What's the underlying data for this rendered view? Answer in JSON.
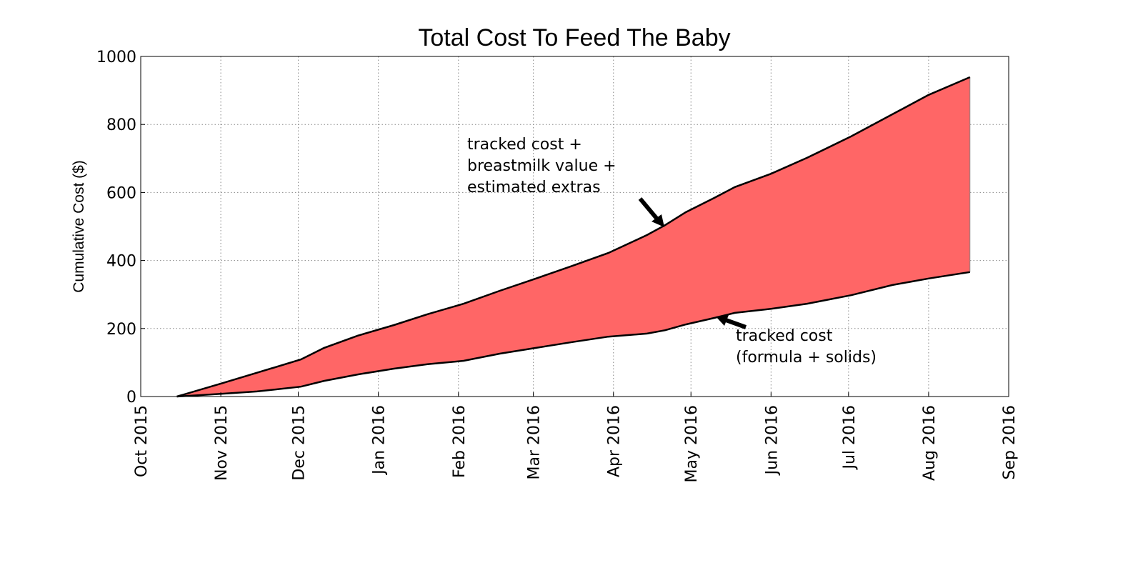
{
  "chart_data": {
    "type": "area",
    "title": "Total Cost To Feed The Baby",
    "xlabel": "",
    "ylabel": "Cumulative Cost ($)",
    "xlim": [
      "2015-10-01",
      "2016-09-01"
    ],
    "ylim": [
      0,
      1000
    ],
    "grid": true,
    "fill_color": "#ff6666",
    "line_color": "#000000",
    "x_ticks": [
      "Oct 2015",
      "Nov 2015",
      "Dec 2015",
      "Jan 2016",
      "Feb 2016",
      "Mar 2016",
      "Apr 2016",
      "May 2016",
      "Jun 2016",
      "Jul 2016",
      "Aug 2016",
      "Sep 2016"
    ],
    "x_tick_dates": [
      "2015-10-01",
      "2015-11-01",
      "2015-12-01",
      "2016-01-01",
      "2016-02-01",
      "2016-03-01",
      "2016-04-01",
      "2016-05-01",
      "2016-06-01",
      "2016-07-01",
      "2016-08-01",
      "2016-09-01"
    ],
    "y_ticks": [
      0,
      200,
      400,
      600,
      800,
      1000
    ],
    "x": [
      "2015-10-15",
      "2015-11-01",
      "2015-11-15",
      "2015-12-02",
      "2015-12-11",
      "2015-12-24",
      "2016-01-07",
      "2016-01-20",
      "2016-02-03",
      "2016-02-17",
      "2016-03-02",
      "2016-03-16",
      "2016-03-30",
      "2016-04-14",
      "2016-04-21",
      "2016-04-29",
      "2016-05-10",
      "2016-05-18",
      "2016-06-01",
      "2016-06-15",
      "2016-07-02",
      "2016-07-18",
      "2016-08-01",
      "2016-08-17"
    ],
    "series": [
      {
        "values": [
          0,
          38,
          70,
          109,
          143,
          179,
          210,
          242,
          273,
          311,
          347,
          384,
          422,
          475,
          504,
          542,
          584,
          616,
          655,
          702,
          765,
          830,
          887,
          939
        ]
      },
      {
        "values": [
          0,
          8,
          15,
          29,
          46,
          65,
          82,
          95,
          105,
          126,
          143,
          160,
          176,
          185,
          195,
          212,
          231,
          246,
          258,
          273,
          298,
          328,
          347,
          366
        ]
      }
    ],
    "annotations": [
      {
        "lines": [
          "tracked cost +",
          "breastmilk value +",
          "estimated extras"
        ],
        "points_to_series": 0
      },
      {
        "lines": [
          "tracked cost",
          "(formula + solids)"
        ],
        "points_to_series": 1
      }
    ]
  }
}
